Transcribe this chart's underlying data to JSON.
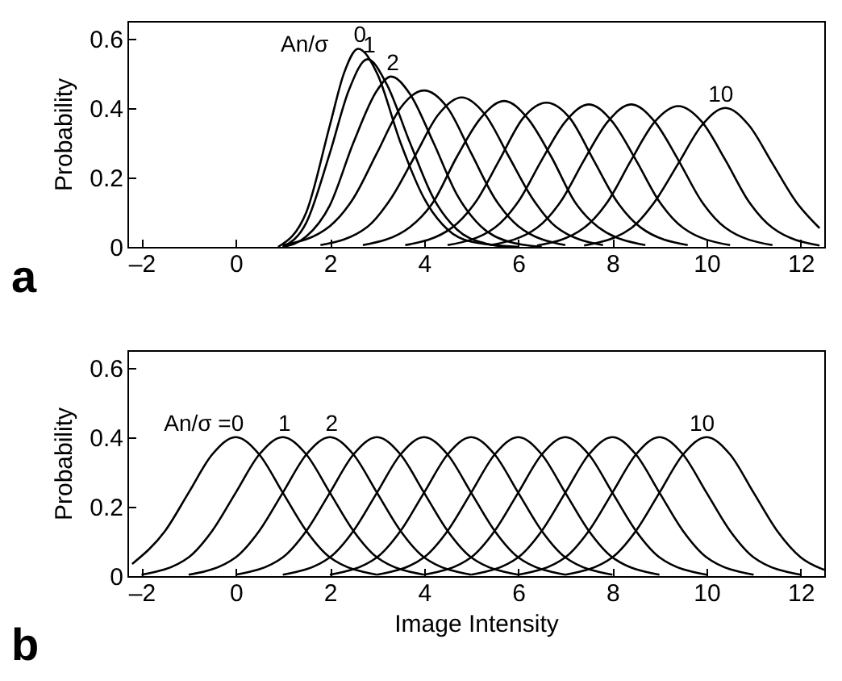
{
  "chart_data": [
    {
      "type": "line",
      "ylabel": "Probability",
      "xlim": [
        -2.3,
        12.5
      ],
      "ylim": [
        0,
        0.65
      ],
      "xticks": [
        {
          "value": -2,
          "label": "–2"
        },
        0,
        2,
        4,
        6,
        8,
        10,
        12
      ],
      "yticks": [
        {
          "value": 0,
          "label": "0"
        },
        0.2,
        0.4,
        0.6
      ],
      "grid": false,
      "line_style": "solid",
      "annotations": [
        "An/σ",
        {
          "text": "0",
          "x": 2.6,
          "y": 0.57
        },
        {
          "text": "1",
          "x": 2.8,
          "y": 0.54
        },
        {
          "text": "2",
          "x": 3.3,
          "y": 0.49
        },
        {
          "text": "10",
          "x": 10.4,
          "y": 0.4
        },
        "a"
      ],
      "series": [
        {
          "color": "#000000",
          "x": [
            0.9,
            1.5,
            2.0,
            2.3,
            2.6,
            3.0,
            3.5,
            4.0,
            4.5,
            5.0,
            6.0
          ],
          "values": [
            0,
            0.1,
            0.35,
            0.5,
            0.57,
            0.5,
            0.3,
            0.14,
            0.05,
            0.015,
            0
          ]
        },
        {
          "color": "#000000",
          "x": [
            1.0,
            1.5,
            2.0,
            2.4,
            2.8,
            3.2,
            3.7,
            4.2,
            4.7,
            5.3,
            5.8
          ],
          "values": [
            0,
            0.07,
            0.27,
            0.45,
            0.54,
            0.47,
            0.3,
            0.14,
            0.05,
            0.01,
            0
          ]
        },
        {
          "color": "#000000",
          "x": [
            1.0,
            1.5,
            2.0,
            2.5,
            3.0,
            3.3,
            3.7,
            4.2,
            4.7,
            5.2,
            5.8,
            6.5
          ],
          "values": [
            0,
            0.03,
            0.12,
            0.3,
            0.45,
            0.49,
            0.44,
            0.3,
            0.15,
            0.06,
            0.015,
            0
          ]
        },
        {
          "color": "#000000",
          "x": [
            1.0,
            2.0,
            2.5,
            3.0,
            3.5,
            4.0,
            4.5,
            5.0,
            5.5,
            6.0,
            7.0
          ],
          "values": [
            0.005,
            0.06,
            0.14,
            0.27,
            0.4,
            0.45,
            0.4,
            0.27,
            0.14,
            0.06,
            0.005
          ]
        },
        {
          "color": "#000000",
          "x": [
            1.8,
            2.8,
            3.3,
            3.8,
            4.3,
            4.8,
            5.3,
            5.8,
            6.3,
            6.8,
            7.8
          ],
          "values": [
            0.005,
            0.058,
            0.14,
            0.26,
            0.38,
            0.43,
            0.38,
            0.26,
            0.14,
            0.058,
            0.005
          ]
        },
        {
          "color": "#000000",
          "x": [
            2.7,
            3.7,
            4.2,
            4.7,
            5.2,
            5.7,
            6.2,
            6.7,
            7.2,
            7.7,
            8.7
          ],
          "values": [
            0.005,
            0.057,
            0.13,
            0.26,
            0.37,
            0.42,
            0.37,
            0.26,
            0.13,
            0.057,
            0.005
          ]
        },
        {
          "color": "#000000",
          "x": [
            3.6,
            4.6,
            5.1,
            5.6,
            6.1,
            6.6,
            7.1,
            7.6,
            8.1,
            8.6,
            9.6
          ],
          "values": [
            0.005,
            0.056,
            0.13,
            0.25,
            0.37,
            0.415,
            0.37,
            0.25,
            0.13,
            0.056,
            0.005
          ]
        },
        {
          "color": "#000000",
          "x": [
            4.5,
            5.5,
            6.0,
            6.5,
            7.0,
            7.5,
            8.0,
            8.5,
            9.0,
            9.5,
            10.5
          ],
          "values": [
            0.005,
            0.055,
            0.13,
            0.25,
            0.36,
            0.41,
            0.36,
            0.25,
            0.13,
            0.055,
            0.005
          ]
        },
        {
          "color": "#000000",
          "x": [
            5.4,
            6.4,
            6.9,
            7.4,
            7.9,
            8.4,
            8.9,
            9.4,
            9.9,
            10.4,
            11.4
          ],
          "values": [
            0.005,
            0.055,
            0.13,
            0.25,
            0.36,
            0.41,
            0.36,
            0.25,
            0.13,
            0.055,
            0.005
          ]
        },
        {
          "color": "#000000",
          "x": [
            6.4,
            7.4,
            7.9,
            8.4,
            8.9,
            9.4,
            9.9,
            10.4,
            10.9,
            11.4,
            12.4
          ],
          "values": [
            0.004,
            0.055,
            0.13,
            0.25,
            0.36,
            0.405,
            0.36,
            0.25,
            0.13,
            0.055,
            0.004
          ]
        },
        {
          "color": "#000000",
          "x": [
            7.4,
            8.4,
            8.9,
            9.4,
            9.9,
            10.4,
            10.9,
            11.4,
            11.9,
            12.4
          ],
          "values": [
            0.004,
            0.054,
            0.13,
            0.24,
            0.35,
            0.4,
            0.35,
            0.24,
            0.13,
            0.054
          ]
        }
      ]
    },
    {
      "type": "line",
      "xlabel": "Image Intensity",
      "ylabel": "Probability",
      "xlim": [
        -2.3,
        12.5
      ],
      "ylim": [
        0,
        0.65
      ],
      "xticks": [
        {
          "value": -2,
          "label": "–2"
        },
        0,
        2,
        4,
        6,
        8,
        10,
        12
      ],
      "yticks": [
        {
          "value": 0,
          "label": "0"
        },
        0.2,
        0.4,
        0.6
      ],
      "grid": false,
      "line_style": "solid",
      "annotations": [
        {
          "text": "An/σ =0",
          "x": 0,
          "y": 0.4
        },
        {
          "text": "1",
          "x": 1,
          "y": 0.4
        },
        {
          "text": "2",
          "x": 2,
          "y": 0.4
        },
        {
          "text": "10",
          "x": 10,
          "y": 0.4
        },
        "b"
      ],
      "series": [
        {
          "color": "#000000",
          "x": [
            -2.2,
            -1.5,
            -1,
            -0.5,
            0,
            0.5,
            1,
            1.5,
            2,
            3
          ],
          "values": [
            0.035,
            0.13,
            0.24,
            0.35,
            0.4,
            0.35,
            0.24,
            0.13,
            0.054,
            0.004
          ]
        },
        {
          "color": "#000000",
          "x": [
            -2,
            -1,
            -0.5,
            0,
            0.5,
            1,
            1.5,
            2,
            2.5,
            3,
            4
          ],
          "values": [
            0.004,
            0.054,
            0.13,
            0.24,
            0.35,
            0.4,
            0.35,
            0.24,
            0.13,
            0.054,
            0.004
          ]
        },
        {
          "color": "#000000",
          "x": [
            -1,
            0,
            0.5,
            1,
            1.5,
            2,
            2.5,
            3,
            3.5,
            4,
            5
          ],
          "values": [
            0.004,
            0.054,
            0.13,
            0.24,
            0.35,
            0.4,
            0.35,
            0.24,
            0.13,
            0.054,
            0.004
          ]
        },
        {
          "color": "#000000",
          "x": [
            0,
            1,
            1.5,
            2,
            2.5,
            3,
            3.5,
            4,
            4.5,
            5,
            6
          ],
          "values": [
            0.004,
            0.054,
            0.13,
            0.24,
            0.35,
            0.4,
            0.35,
            0.24,
            0.13,
            0.054,
            0.004
          ]
        },
        {
          "color": "#000000",
          "x": [
            1,
            2,
            2.5,
            3,
            3.5,
            4,
            4.5,
            5,
            5.5,
            6,
            7
          ],
          "values": [
            0.004,
            0.054,
            0.13,
            0.24,
            0.35,
            0.4,
            0.35,
            0.24,
            0.13,
            0.054,
            0.004
          ]
        },
        {
          "color": "#000000",
          "x": [
            2,
            3,
            3.5,
            4,
            4.5,
            5,
            5.5,
            6,
            6.5,
            7,
            8
          ],
          "values": [
            0.004,
            0.054,
            0.13,
            0.24,
            0.35,
            0.4,
            0.35,
            0.24,
            0.13,
            0.054,
            0.004
          ]
        },
        {
          "color": "#000000",
          "x": [
            3,
            4,
            4.5,
            5,
            5.5,
            6,
            6.5,
            7,
            7.5,
            8,
            9
          ],
          "values": [
            0.004,
            0.054,
            0.13,
            0.24,
            0.35,
            0.4,
            0.35,
            0.24,
            0.13,
            0.054,
            0.004
          ]
        },
        {
          "color": "#000000",
          "x": [
            4,
            5,
            5.5,
            6,
            6.5,
            7,
            7.5,
            8,
            8.5,
            9,
            10
          ],
          "values": [
            0.004,
            0.054,
            0.13,
            0.24,
            0.35,
            0.4,
            0.35,
            0.24,
            0.13,
            0.054,
            0.004
          ]
        },
        {
          "color": "#000000",
          "x": [
            5,
            6,
            6.5,
            7,
            7.5,
            8,
            8.5,
            9,
            9.5,
            10,
            11
          ],
          "values": [
            0.004,
            0.054,
            0.13,
            0.24,
            0.35,
            0.4,
            0.35,
            0.24,
            0.13,
            0.054,
            0.004
          ]
        },
        {
          "color": "#000000",
          "x": [
            6,
            7,
            7.5,
            8,
            8.5,
            9,
            9.5,
            10,
            10.5,
            11,
            12
          ],
          "values": [
            0.004,
            0.054,
            0.13,
            0.24,
            0.35,
            0.4,
            0.35,
            0.24,
            0.13,
            0.054,
            0.004
          ]
        },
        {
          "color": "#000000",
          "x": [
            7,
            8,
            8.5,
            9,
            9.5,
            10,
            10.5,
            11,
            11.5,
            12,
            12.5
          ],
          "values": [
            0.004,
            0.054,
            0.13,
            0.24,
            0.35,
            0.4,
            0.35,
            0.24,
            0.13,
            0.054,
            0.018
          ]
        }
      ]
    }
  ]
}
